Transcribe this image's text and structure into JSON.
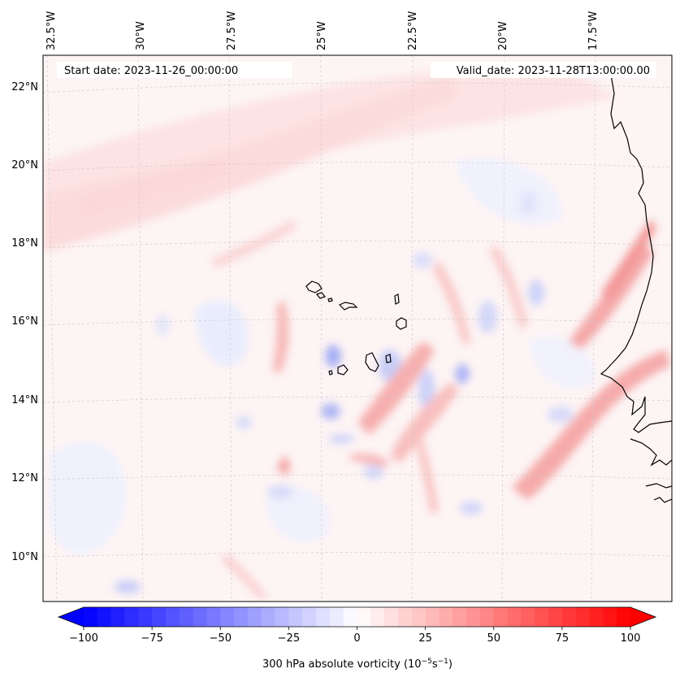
{
  "header": {
    "start_date": "Start date: 2023-11-26_00:00:00",
    "valid_date": "Valid_date: 2023-11-28T13:00:00.00"
  },
  "longitude_labels": [
    "32.5°W",
    "30°W",
    "27.5°W",
    "25°W",
    "22.5°W",
    "20°W",
    "17.5°W"
  ],
  "latitude_labels": [
    "22°N",
    "20°N",
    "18°N",
    "16°N",
    "14°N",
    "12°N",
    "10°N"
  ],
  "colorbar": {
    "label": "300 hPa absolute vorticity (10",
    "label_exp1": "−5",
    "label_mid": "s",
    "label_exp2": "−1",
    "label_end": ")",
    "min": -100,
    "max": 100,
    "ticks": [
      "−100",
      "−75",
      "−50",
      "−25",
      "0",
      "25",
      "50",
      "75",
      "100"
    ],
    "tick_values": [
      -100,
      -75,
      -50,
      -25,
      0,
      25,
      50,
      75,
      100
    ],
    "levels": 40,
    "colormap": "bwr",
    "extend": "both"
  },
  "map": {
    "projection": "lambert",
    "extent_lon": [
      -33.0,
      -15.0
    ],
    "extent_lat": [
      8.8,
      22.8
    ],
    "coastline_color": "#000000",
    "gridline_style": "dashed"
  }
}
